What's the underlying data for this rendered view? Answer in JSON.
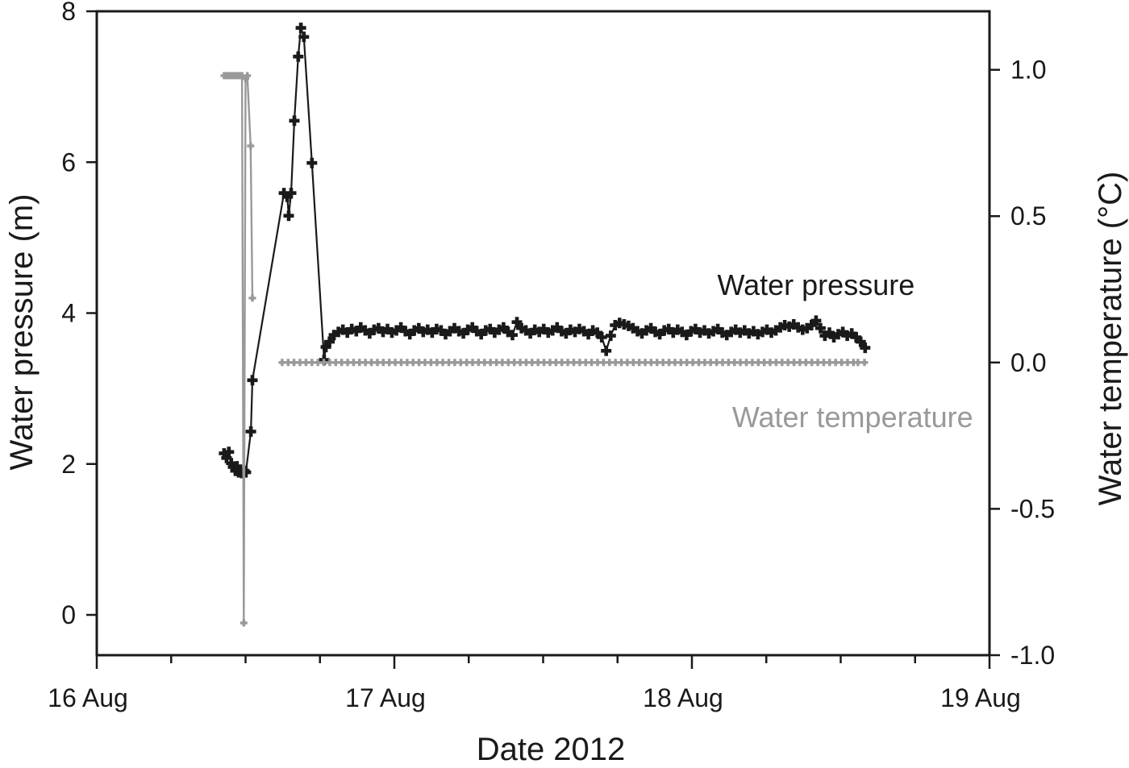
{
  "figure": {
    "xlabel": "Date 2012",
    "ylabel_left": "Water pressure (m)",
    "ylabel_right": "Water temperature (°C)"
  },
  "chart_data": {
    "type": "line",
    "title": "",
    "xlabel": "Date 2012",
    "grid": false,
    "legend_position": "in-plot text annotations",
    "x_axis": {
      "unit": "days since 16 Aug 2012 00:00",
      "range_days": [
        0,
        3
      ],
      "major_tick_days": [
        0,
        1,
        2,
        3
      ],
      "tick_labels": [
        "16 Aug",
        "17 Aug",
        "18 Aug",
        "19 Aug"
      ],
      "minor_tick_step_days": 0.25
    },
    "y_left": {
      "label": "Water pressure (m)",
      "range": [
        -0.534,
        8
      ],
      "ticks": [
        0,
        2,
        4,
        6,
        8
      ],
      "tick_labels": [
        "0",
        "2",
        "4",
        "6",
        "8"
      ]
    },
    "y_right": {
      "label": "Water temperature (°C)",
      "range": [
        -1.0,
        1.2
      ],
      "ticks": [
        1.0,
        0.5,
        0.0,
        -0.5,
        -1.0
      ],
      "tick_labels": [
        "1.0",
        "0.5",
        "0.0",
        "-0.5",
        "-1.0"
      ]
    },
    "series": [
      {
        "name": "Water pressure",
        "axis": "left",
        "color": "#1a1a1a",
        "marker": "plus",
        "segments": [
          [
            [
              0.428,
              2.14
            ],
            [
              0.436,
              2.08
            ],
            [
              0.444,
              2.16
            ],
            [
              0.452,
              2.01
            ],
            [
              0.458,
              1.96
            ],
            [
              0.466,
              1.91
            ],
            [
              0.471,
              1.97
            ],
            [
              0.477,
              1.89
            ],
            [
              0.482,
              1.92
            ],
            [
              0.488,
              1.88
            ],
            [
              0.496,
              1.91
            ],
            [
              0.501,
              1.89
            ],
            [
              0.518,
              2.43
            ],
            [
              0.523,
              3.11
            ],
            [
              0.629,
              5.59
            ],
            [
              0.64,
              5.54
            ],
            [
              0.645,
              5.29
            ],
            [
              0.653,
              5.59
            ],
            [
              0.664,
              6.55
            ],
            [
              0.677,
              7.4
            ],
            [
              0.686,
              7.78
            ],
            [
              0.696,
              7.66
            ],
            [
              0.723,
              5.99
            ],
            [
              0.764,
              3.38
            ],
            [
              0.77,
              3.55
            ],
            [
              0.782,
              3.62
            ],
            [
              0.797,
              3.71
            ],
            [
              0.812,
              3.75
            ],
            [
              0.827,
              3.78
            ],
            [
              0.842,
              3.74
            ],
            [
              0.857,
              3.79
            ],
            [
              0.872,
              3.76
            ],
            [
              0.887,
              3.81
            ],
            [
              0.902,
              3.77
            ],
            [
              0.917,
              3.73
            ],
            [
              0.932,
              3.78
            ],
            [
              0.947,
              3.8
            ],
            [
              0.962,
              3.75
            ],
            [
              0.977,
              3.79
            ],
            [
              0.992,
              3.74
            ],
            [
              1.007,
              3.77
            ],
            [
              1.022,
              3.81
            ],
            [
              1.037,
              3.76
            ],
            [
              1.052,
              3.72
            ],
            [
              1.067,
              3.77
            ],
            [
              1.082,
              3.8
            ],
            [
              1.097,
              3.75
            ],
            [
              1.112,
              3.78
            ],
            [
              1.127,
              3.74
            ],
            [
              1.142,
              3.79
            ],
            [
              1.157,
              3.77
            ],
            [
              1.172,
              3.72
            ],
            [
              1.187,
              3.76
            ],
            [
              1.202,
              3.8
            ],
            [
              1.217,
              3.76
            ],
            [
              1.232,
              3.73
            ],
            [
              1.247,
              3.78
            ],
            [
              1.262,
              3.81
            ],
            [
              1.277,
              3.76
            ],
            [
              1.292,
              3.72
            ],
            [
              1.307,
              3.77
            ],
            [
              1.322,
              3.79
            ],
            [
              1.337,
              3.74
            ],
            [
              1.352,
              3.78
            ],
            [
              1.367,
              3.81
            ],
            [
              1.382,
              3.75
            ],
            [
              1.397,
              3.71
            ],
            [
              1.412,
              3.88
            ],
            [
              1.427,
              3.8
            ],
            [
              1.442,
              3.77
            ],
            [
              1.457,
              3.73
            ],
            [
              1.472,
              3.78
            ],
            [
              1.487,
              3.75
            ],
            [
              1.502,
              3.79
            ],
            [
              1.517,
              3.74
            ],
            [
              1.532,
              3.77
            ],
            [
              1.547,
              3.81
            ],
            [
              1.562,
              3.76
            ],
            [
              1.577,
              3.73
            ],
            [
              1.592,
              3.78
            ],
            [
              1.607,
              3.75
            ],
            [
              1.622,
              3.79
            ],
            [
              1.637,
              3.76
            ],
            [
              1.652,
              3.72
            ],
            [
              1.667,
              3.77
            ],
            [
              1.682,
              3.74
            ],
            [
              1.697,
              3.68
            ],
            [
              1.712,
              3.5
            ],
            [
              1.727,
              3.7
            ],
            [
              1.742,
              3.84
            ],
            [
              1.757,
              3.87
            ],
            [
              1.772,
              3.85
            ],
            [
              1.787,
              3.83
            ],
            [
              1.802,
              3.8
            ],
            [
              1.817,
              3.76
            ],
            [
              1.832,
              3.73
            ],
            [
              1.847,
              3.77
            ],
            [
              1.862,
              3.8
            ],
            [
              1.877,
              3.75
            ],
            [
              1.892,
              3.72
            ],
            [
              1.907,
              3.77
            ],
            [
              1.922,
              3.79
            ],
            [
              1.937,
              3.74
            ],
            [
              1.952,
              3.78
            ],
            [
              1.967,
              3.75
            ],
            [
              1.982,
              3.71
            ],
            [
              1.997,
              3.76
            ],
            [
              2.012,
              3.79
            ],
            [
              2.027,
              3.74
            ],
            [
              2.042,
              3.77
            ],
            [
              2.057,
              3.73
            ],
            [
              2.072,
              3.76
            ],
            [
              2.087,
              3.79
            ],
            [
              2.102,
              3.74
            ],
            [
              2.117,
              3.71
            ],
            [
              2.132,
              3.75
            ],
            [
              2.147,
              3.78
            ],
            [
              2.162,
              3.74
            ],
            [
              2.177,
              3.77
            ],
            [
              2.192,
              3.73
            ],
            [
              2.207,
              3.76
            ],
            [
              2.222,
              3.72
            ],
            [
              2.237,
              3.75
            ],
            [
              2.252,
              3.78
            ],
            [
              2.267,
              3.74
            ],
            [
              2.282,
              3.77
            ],
            [
              2.297,
              3.81
            ],
            [
              2.312,
              3.84
            ],
            [
              2.327,
              3.82
            ],
            [
              2.342,
              3.85
            ],
            [
              2.357,
              3.81
            ],
            [
              2.372,
              3.78
            ],
            [
              2.387,
              3.8
            ],
            [
              2.402,
              3.84
            ],
            [
              2.417,
              3.9
            ],
            [
              2.432,
              3.8
            ],
            [
              2.447,
              3.7
            ],
            [
              2.462,
              3.74
            ],
            [
              2.477,
              3.68
            ],
            [
              2.492,
              3.72
            ],
            [
              2.507,
              3.75
            ],
            [
              2.522,
              3.7
            ],
            [
              2.537,
              3.73
            ],
            [
              2.552,
              3.68
            ],
            [
              2.567,
              3.62
            ],
            [
              2.582,
              3.54
            ]
          ]
        ]
      },
      {
        "name": "Water temperature",
        "axis": "right",
        "color": "#999999",
        "marker": "plus",
        "segments": [
          [
            [
              0.428,
              0.98
            ],
            [
              0.434,
              0.98
            ],
            [
              0.44,
              0.98
            ],
            [
              0.446,
              0.98
            ],
            [
              0.452,
              0.98
            ],
            [
              0.458,
              0.98
            ],
            [
              0.464,
              0.98
            ],
            [
              0.47,
              0.98
            ],
            [
              0.476,
              0.98
            ],
            [
              0.482,
              0.98
            ],
            [
              0.488,
              0.98
            ],
            [
              0.494,
              -0.89
            ],
            [
              0.5,
              0.97
            ],
            [
              0.506,
              0.98
            ],
            [
              0.517,
              0.74
            ],
            [
              0.523,
              0.22
            ]
          ],
          [
            [
              0.623,
              0
            ],
            [
              0.643,
              0
            ],
            [
              0.663,
              0
            ],
            [
              0.683,
              0
            ],
            [
              0.703,
              0
            ],
            [
              0.723,
              0
            ],
            [
              0.743,
              0
            ],
            [
              0.763,
              0
            ],
            [
              0.783,
              0
            ],
            [
              0.803,
              0
            ],
            [
              0.823,
              0
            ],
            [
              0.843,
              0
            ],
            [
              0.863,
              0
            ],
            [
              0.883,
              0
            ],
            [
              0.903,
              0
            ],
            [
              0.923,
              0
            ],
            [
              0.943,
              0
            ],
            [
              0.963,
              0
            ],
            [
              0.983,
              0
            ],
            [
              1.003,
              0
            ],
            [
              1.023,
              0
            ],
            [
              1.043,
              0
            ],
            [
              1.063,
              0
            ],
            [
              1.083,
              0
            ],
            [
              1.103,
              0
            ],
            [
              1.123,
              0
            ],
            [
              1.143,
              0
            ],
            [
              1.163,
              0
            ],
            [
              1.183,
              0
            ],
            [
              1.203,
              0
            ],
            [
              1.223,
              0
            ],
            [
              1.243,
              0
            ],
            [
              1.263,
              0
            ],
            [
              1.283,
              0
            ],
            [
              1.303,
              0
            ],
            [
              1.323,
              0
            ],
            [
              1.343,
              0
            ],
            [
              1.363,
              0
            ],
            [
              1.383,
              0
            ],
            [
              1.403,
              0
            ],
            [
              1.423,
              0
            ],
            [
              1.443,
              0
            ],
            [
              1.463,
              0
            ],
            [
              1.483,
              0
            ],
            [
              1.503,
              0
            ],
            [
              1.523,
              0
            ],
            [
              1.543,
              0
            ],
            [
              1.563,
              0
            ],
            [
              1.583,
              0
            ],
            [
              1.603,
              0
            ],
            [
              1.623,
              0
            ],
            [
              1.643,
              0
            ],
            [
              1.663,
              0
            ],
            [
              1.683,
              0
            ],
            [
              1.703,
              0
            ],
            [
              1.723,
              0
            ],
            [
              1.743,
              0
            ],
            [
              1.763,
              0
            ],
            [
              1.783,
              0
            ],
            [
              1.803,
              0
            ],
            [
              1.823,
              0
            ],
            [
              1.843,
              0
            ],
            [
              1.863,
              0
            ],
            [
              1.883,
              0
            ],
            [
              1.903,
              0
            ],
            [
              1.923,
              0
            ],
            [
              1.943,
              0
            ],
            [
              1.963,
              0
            ],
            [
              1.983,
              0
            ],
            [
              2.003,
              0
            ],
            [
              2.023,
              0
            ],
            [
              2.043,
              0
            ],
            [
              2.063,
              0
            ],
            [
              2.083,
              0
            ],
            [
              2.103,
              0
            ],
            [
              2.123,
              0
            ],
            [
              2.143,
              0
            ],
            [
              2.163,
              0
            ],
            [
              2.183,
              0
            ],
            [
              2.203,
              0
            ],
            [
              2.223,
              0
            ],
            [
              2.243,
              0
            ],
            [
              2.263,
              0
            ],
            [
              2.283,
              0
            ],
            [
              2.303,
              0
            ],
            [
              2.323,
              0
            ],
            [
              2.343,
              0
            ],
            [
              2.363,
              0
            ],
            [
              2.383,
              0
            ],
            [
              2.403,
              0
            ],
            [
              2.423,
              0
            ],
            [
              2.443,
              0
            ],
            [
              2.463,
              0
            ],
            [
              2.483,
              0
            ],
            [
              2.503,
              0
            ],
            [
              2.523,
              0
            ],
            [
              2.543,
              0
            ],
            [
              2.558,
              0
            ],
            [
              2.58,
              0
            ]
          ]
        ]
      }
    ],
    "annotations": [
      {
        "text": "Water pressure",
        "color": "#1a1a1a",
        "axis": "left",
        "x_day": 2.417,
        "y_value": 4.38
      },
      {
        "text": "Water temperature",
        "color": "#999999",
        "axis": "right",
        "x_day": 2.54,
        "y_value": -0.185
      }
    ]
  }
}
